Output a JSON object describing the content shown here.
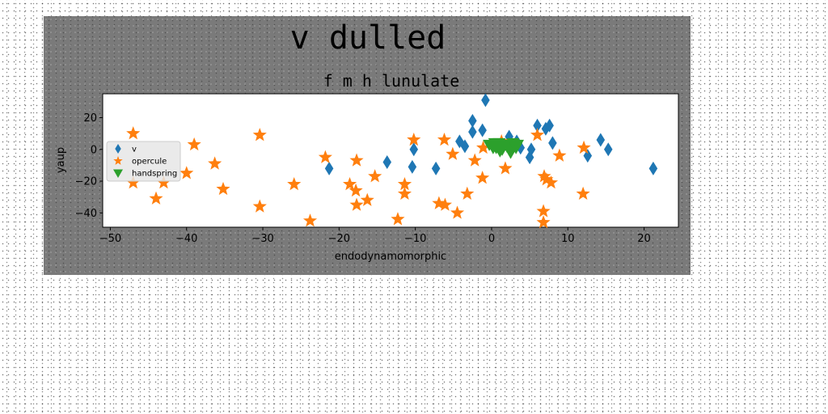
{
  "chart_data": {
    "type": "scatter",
    "title": "v dulled",
    "subtitle": "f m h lunulate",
    "xlabel": "endodynamomorphic",
    "ylabel": "yaup",
    "xlim": [
      -51,
      24.5
    ],
    "ylim": [
      -49,
      35
    ],
    "xticks": [
      -50,
      -40,
      -30,
      -20,
      -10,
      0,
      10,
      20
    ],
    "yticks": [
      -40,
      -20,
      0,
      20
    ],
    "grid": false,
    "legend_position": "center-left",
    "series": [
      {
        "name": "v",
        "marker": "diamond",
        "color": "#1f77b4",
        "points": [
          [
            -0.8,
            31
          ],
          [
            -2.5,
            18
          ],
          [
            -2.5,
            11
          ],
          [
            -1.2,
            12
          ],
          [
            -4.2,
            5
          ],
          [
            -3.5,
            2
          ],
          [
            2.3,
            8
          ],
          [
            3.3,
            5
          ],
          [
            6.0,
            15
          ],
          [
            7.1,
            13
          ],
          [
            7.6,
            15
          ],
          [
            8.0,
            4
          ],
          [
            5.2,
            0
          ],
          [
            5.0,
            -5
          ],
          [
            3.8,
            1
          ],
          [
            12.6,
            -4
          ],
          [
            14.3,
            6
          ],
          [
            15.3,
            0
          ],
          [
            -10.2,
            0
          ],
          [
            -10.4,
            -11
          ],
          [
            -13.7,
            -8
          ],
          [
            -21.3,
            -12
          ],
          [
            -7.3,
            -12
          ],
          [
            21.2,
            -12
          ]
        ]
      },
      {
        "name": "opercule",
        "marker": "star",
        "color": "#ff7f0e",
        "points": [
          [
            -47,
            10
          ],
          [
            -47,
            -21
          ],
          [
            -44,
            -31
          ],
          [
            -43,
            -21
          ],
          [
            -39,
            3
          ],
          [
            -40,
            -15
          ],
          [
            -36.3,
            -9
          ],
          [
            -35.2,
            -25
          ],
          [
            -30.4,
            9
          ],
          [
            -30.4,
            -36
          ],
          [
            -25.9,
            -22
          ],
          [
            -23.8,
            -45
          ],
          [
            -21.8,
            -5
          ],
          [
            -18.6,
            -22
          ],
          [
            -17.8,
            -26
          ],
          [
            -17.7,
            -7
          ],
          [
            -17.7,
            -35
          ],
          [
            -16.3,
            -32
          ],
          [
            -15.3,
            -17
          ],
          [
            -11.4,
            -22
          ],
          [
            -11.4,
            -28
          ],
          [
            -12.3,
            -44
          ],
          [
            -10.2,
            6
          ],
          [
            -6.9,
            -34
          ],
          [
            -6.1,
            -35
          ],
          [
            -6.2,
            6
          ],
          [
            -5.1,
            -3
          ],
          [
            -4.5,
            -40
          ],
          [
            -3.2,
            -28
          ],
          [
            -2.2,
            -7
          ],
          [
            -1.2,
            -18
          ],
          [
            -1.1,
            1
          ],
          [
            1.3,
            5
          ],
          [
            1.8,
            -12
          ],
          [
            6.0,
            9
          ],
          [
            6.8,
            -39
          ],
          [
            6.8,
            -46
          ],
          [
            6.9,
            -17
          ],
          [
            7.2,
            -19
          ],
          [
            7.8,
            -21
          ],
          [
            8.9,
            -4
          ],
          [
            12.1,
            1
          ],
          [
            12.0,
            -28
          ]
        ]
      },
      {
        "name": "handspring",
        "marker": "triangle-down",
        "color": "#2ca02c",
        "points": [
          [
            -0.3,
            3
          ],
          [
            0.4,
            4
          ],
          [
            0.6,
            1
          ],
          [
            1.0,
            4
          ],
          [
            1.4,
            0
          ],
          [
            1.6,
            3
          ],
          [
            2.0,
            2
          ],
          [
            2.3,
            0
          ],
          [
            2.8,
            4
          ],
          [
            3.2,
            1
          ],
          [
            3.4,
            3
          ],
          [
            1.1,
            -1
          ],
          [
            2.5,
            -2
          ],
          [
            0.2,
            1
          ]
        ]
      }
    ]
  }
}
